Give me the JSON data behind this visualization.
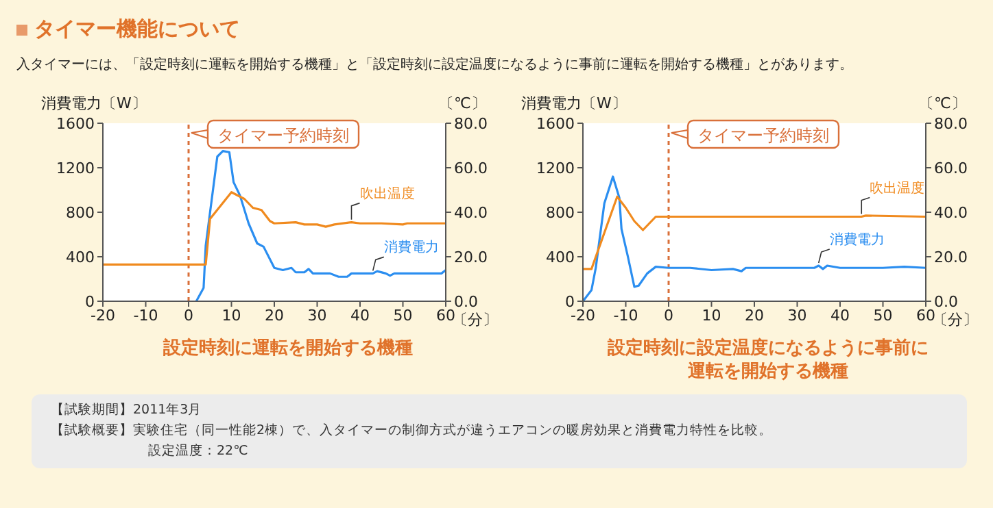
{
  "chart_data": [
    {
      "type": "line",
      "title": "設定時刻に運転を開始する機種",
      "xlabel": "〔分〕",
      "ylabel": "消費電力〔W〕",
      "y2label": "〔℃〕",
      "annotations": [
        "タイマー機能について",
        "入タイマーには、「設定時刻に運転を開始する機種」と「設定時刻に設定温度になるように事前に運転を開始する機種」とがあります。"
      ],
      "xlim": [
        -20,
        60
      ],
      "xticks": [
        -20,
        -10,
        0,
        10,
        20,
        30,
        40,
        50,
        60
      ],
      "ylim": [
        0,
        1600
      ],
      "yticks": [
        0,
        400,
        800,
        1200,
        1600
      ],
      "y2lim": [
        0,
        80
      ],
      "y2ticks": [
        {
          "value": 0,
          "label": "0.0"
        },
        {
          "value": 20,
          "label": "20.0"
        },
        {
          "value": 40,
          "label": "40.0"
        },
        {
          "value": 60,
          "label": "60.0"
        },
        {
          "value": 80,
          "label": "80.0"
        }
      ],
      "marker": "none",
      "line_style": "solid",
      "ref_lines": [
        {
          "axis": "x",
          "value": 0,
          "label": "タイマー予約時刻",
          "color": "#d9703a",
          "line_style": "dotted"
        }
      ],
      "series": [
        {
          "name": "消費電力",
          "color": "#2b8ef0",
          "x": [
            1.8,
            3.5,
            4,
            6.7,
            8,
            9.5,
            10.5,
            12,
            14,
            16,
            17.5,
            20,
            22,
            24,
            25,
            27,
            28,
            29,
            33,
            35,
            37,
            38,
            43,
            44,
            46,
            47,
            48,
            59,
            60
          ],
          "values": [
            0,
            120,
            500,
            1300,
            1350,
            1340,
            1070,
            950,
            700,
            520,
            490,
            300,
            280,
            300,
            260,
            260,
            290,
            250,
            250,
            220,
            220,
            250,
            250,
            270,
            250,
            230,
            250,
            250,
            280
          ]
        },
        {
          "name": "吹出温度",
          "color": "#f08a1e",
          "axis": "y2",
          "x": [
            -20,
            4,
            5,
            10,
            13,
            15,
            17,
            19,
            20,
            25,
            27,
            30,
            32,
            34,
            38,
            40,
            45,
            50,
            51,
            60
          ],
          "values": [
            16.5,
            16.5,
            37,
            49,
            46,
            42,
            41,
            36,
            35,
            35.5,
            34.5,
            34.5,
            33.5,
            34.5,
            35.5,
            35,
            35,
            34.5,
            35,
            35
          ]
        }
      ]
    },
    {
      "type": "line",
      "title": "設定時刻に設定温度になるように事前に運転を開始する機種",
      "xlabel": "〔分〕",
      "ylabel": "消費電力〔W〕",
      "y2label": "〔℃〕",
      "annotations": [
        "【試験期間】2011年3月",
        "【試験概要】実験住宅（同一性能2棟）で、入タイマーの制御方式が違うエアコンの暖房効果と消費電力特性を比較。",
        "設定温度：22℃"
      ],
      "xlim": [
        -20,
        60
      ],
      "xticks": [
        -20,
        -10,
        0,
        10,
        20,
        30,
        40,
        50,
        60
      ],
      "ylim": [
        0,
        1600
      ],
      "yticks": [
        0,
        400,
        800,
        1200,
        1600
      ],
      "y2lim": [
        0,
        80
      ],
      "y2ticks": [
        {
          "value": 0,
          "label": "0.0"
        },
        {
          "value": 20,
          "label": "20.0"
        },
        {
          "value": 40,
          "label": "40.0"
        },
        {
          "value": 60,
          "label": "60.0"
        },
        {
          "value": 80,
          "label": "80.0"
        }
      ],
      "marker": "none",
      "line_style": "solid",
      "ref_lines": [
        {
          "axis": "x",
          "value": 0,
          "label": "タイマー予約時刻",
          "color": "#d9703a",
          "line_style": "dotted"
        }
      ],
      "series": [
        {
          "name": "消費電力",
          "color": "#2b8ef0",
          "x": [
            -20,
            -18,
            -17,
            -15,
            -13,
            -11.5,
            -11,
            -9.5,
            -8,
            -7,
            -5,
            -3,
            0,
            2,
            5,
            10,
            15,
            17,
            18,
            34,
            35,
            36,
            37,
            40,
            45,
            50,
            55,
            60
          ],
          "values": [
            0,
            100,
            300,
            880,
            1120,
            930,
            650,
            400,
            130,
            140,
            250,
            310,
            300,
            300,
            300,
            280,
            290,
            270,
            300,
            300,
            320,
            290,
            320,
            300,
            300,
            300,
            310,
            300
          ]
        },
        {
          "name": "吹出温度",
          "color": "#f08a1e",
          "axis": "y2",
          "x": [
            -20,
            -18,
            -12,
            -10,
            -8,
            -6,
            -3,
            0,
            30,
            45,
            46,
            60
          ],
          "values": [
            14.5,
            14.5,
            47,
            42,
            36,
            32,
            38,
            38,
            38,
            38,
            38.5,
            38
          ]
        }
      ]
    }
  ]
}
